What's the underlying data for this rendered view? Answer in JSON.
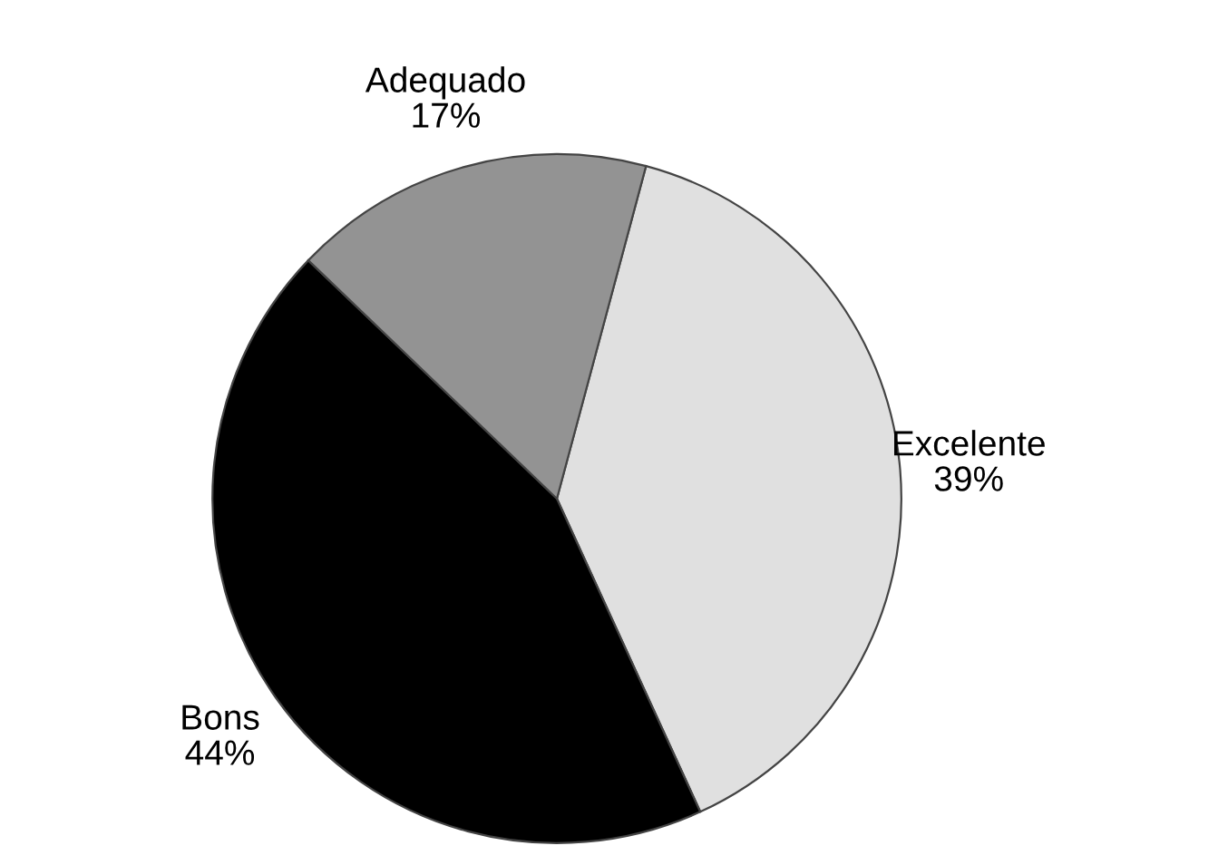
{
  "chart_data": {
    "type": "pie",
    "categories": [
      "Excelente",
      "Bons",
      "Adequado"
    ],
    "values": [
      39,
      44,
      17
    ],
    "value_labels": [
      "39%",
      "44%",
      "17%"
    ],
    "colors": [
      "#e0e0e0",
      "#000000",
      "#939393"
    ]
  }
}
